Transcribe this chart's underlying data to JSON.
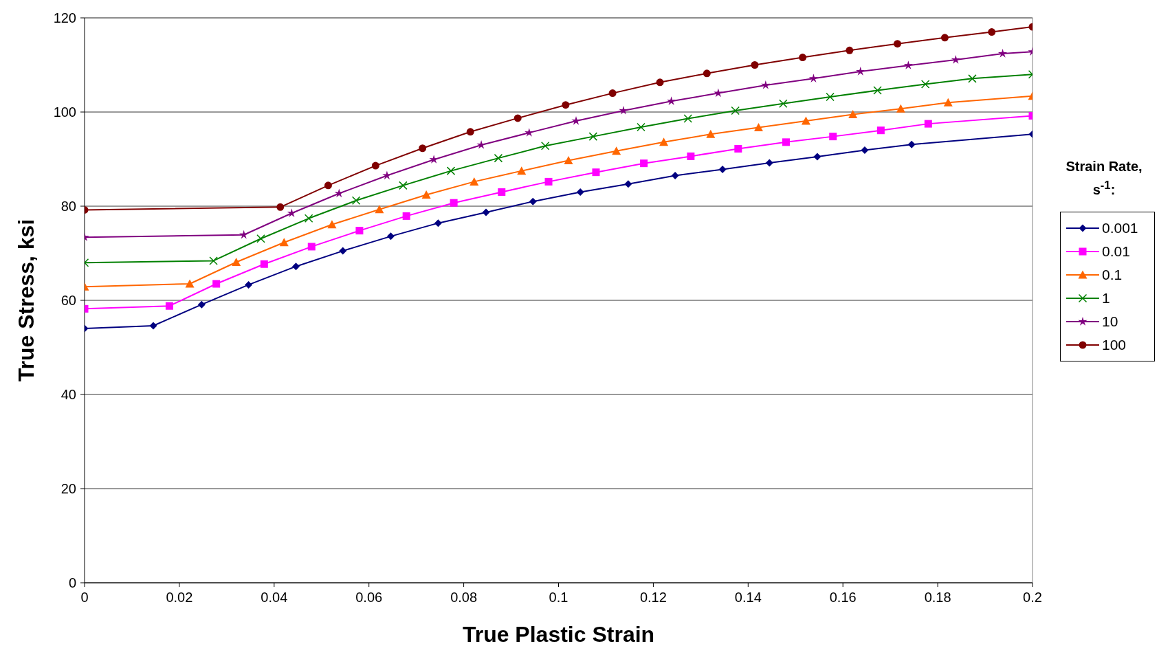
{
  "chart_data": {
    "type": "line",
    "xlabel": "True Plastic Strain",
    "ylabel": "True Stress, ksi",
    "legend_title": "Strain Rate, s$^{-1}$:",
    "legend": "right",
    "grid": "y",
    "xlim": [
      0,
      0.2
    ],
    "xticks": [
      0,
      0.02,
      0.04,
      0.06,
      0.08,
      0.1,
      0.12,
      0.14,
      0.16,
      0.18,
      0.2
    ],
    "ylim": [
      0,
      120
    ],
    "yticks": [
      0,
      20,
      40,
      60,
      80,
      100,
      120
    ],
    "series": [
      {
        "name": "0.001",
        "color": "#000080",
        "marker": "diamond",
        "x": [
          0,
          0.0145,
          0.0247,
          0.0346,
          0.0446,
          0.0545,
          0.0646,
          0.0746,
          0.0847,
          0.0946,
          0.1046,
          0.1147,
          0.1246,
          0.1346,
          0.1445,
          0.1546,
          0.1646,
          0.1745,
          0.2
        ],
        "values": [
          54.0,
          54.6,
          59.1,
          63.3,
          67.2,
          70.5,
          73.6,
          76.4,
          78.7,
          81.0,
          83.0,
          84.7,
          86.5,
          87.8,
          89.2,
          90.5,
          91.9,
          93.1,
          95.3
        ]
      },
      {
        "name": "0.01",
        "color": "#ff00ff",
        "marker": "square",
        "x": [
          0,
          0.0179,
          0.0278,
          0.0379,
          0.0479,
          0.058,
          0.0679,
          0.0779,
          0.088,
          0.0979,
          0.1079,
          0.118,
          0.1279,
          0.1379,
          0.148,
          0.1579,
          0.168,
          0.178,
          0.2
        ],
        "values": [
          58.2,
          58.8,
          63.5,
          67.7,
          71.4,
          74.8,
          77.9,
          80.7,
          83.0,
          85.2,
          87.2,
          89.1,
          90.6,
          92.2,
          93.6,
          94.8,
          96.1,
          97.5,
          99.2
        ]
      },
      {
        "name": "0.1",
        "color": "#ff6600",
        "marker": "triangle",
        "x": [
          0,
          0.0222,
          0.032,
          0.0421,
          0.0522,
          0.0622,
          0.0721,
          0.0822,
          0.0922,
          0.1021,
          0.1122,
          0.1222,
          0.1321,
          0.1422,
          0.1522,
          0.1621,
          0.1722,
          0.1822,
          0.2
        ],
        "values": [
          62.9,
          63.5,
          68.1,
          72.3,
          76.1,
          79.3,
          82.4,
          85.2,
          87.5,
          89.7,
          91.7,
          93.6,
          95.3,
          96.7,
          98.1,
          99.5,
          100.7,
          102.0,
          103.4
        ]
      },
      {
        "name": "1",
        "color": "#008000",
        "marker": "cross",
        "x": [
          0,
          0.0272,
          0.0372,
          0.0473,
          0.0573,
          0.0672,
          0.0773,
          0.0873,
          0.0972,
          0.1073,
          0.1174,
          0.1273,
          0.1373,
          0.1474,
          0.1573,
          0.1673,
          0.1774,
          0.1873,
          0.2
        ],
        "values": [
          68.0,
          68.4,
          73.1,
          77.4,
          81.2,
          84.4,
          87.5,
          90.2,
          92.8,
          94.8,
          96.8,
          98.6,
          100.3,
          101.8,
          103.2,
          104.6,
          105.9,
          107.1,
          108.0
        ]
      },
      {
        "name": "10",
        "color": "#800080",
        "marker": "star",
        "x": [
          0,
          0.0336,
          0.0437,
          0.0537,
          0.0638,
          0.0737,
          0.0837,
          0.0938,
          0.1037,
          0.1137,
          0.1238,
          0.1337,
          0.1437,
          0.1538,
          0.1637,
          0.1738,
          0.1838,
          0.1937,
          0.2
        ],
        "values": [
          73.4,
          73.9,
          78.5,
          82.7,
          86.5,
          89.9,
          93.0,
          95.6,
          98.1,
          100.3,
          102.3,
          104.0,
          105.7,
          107.1,
          108.6,
          109.9,
          111.1,
          112.4,
          112.8
        ]
      },
      {
        "name": "100",
        "color": "#800000",
        "marker": "circle",
        "x": [
          0,
          0.0413,
          0.0514,
          0.0614,
          0.0713,
          0.0814,
          0.0914,
          0.1015,
          0.1114,
          0.1214,
          0.1313,
          0.1414,
          0.1515,
          0.1614,
          0.1715,
          0.1815,
          0.1914,
          0.2
        ],
        "values": [
          79.2,
          79.8,
          84.4,
          88.6,
          92.3,
          95.8,
          98.7,
          101.5,
          104.0,
          106.3,
          108.2,
          110.0,
          111.6,
          113.1,
          114.5,
          115.8,
          117.0,
          118.1
        ]
      }
    ]
  }
}
